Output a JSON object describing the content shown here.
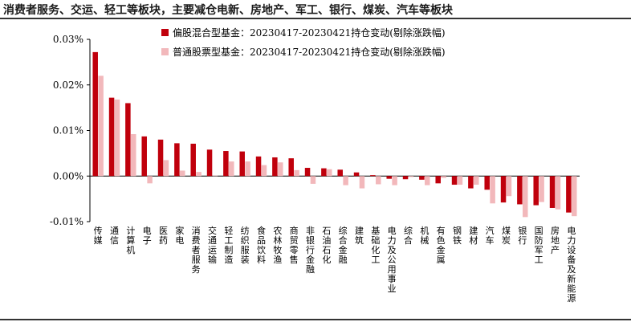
{
  "header": {
    "title": "消费者服务、交运、轻工等板块，主要减仓电新、房地产、军工、银行、煤炭、汽车等板块"
  },
  "chart_data": {
    "type": "bar",
    "title": "",
    "xlabel": "",
    "ylabel": "",
    "ylim": [
      -0.01,
      0.03
    ],
    "yticks": [
      "-0.01%",
      "0.00%",
      "0.01%",
      "0.02%",
      "0.03%"
    ],
    "grid": false,
    "legend_position": "top-center",
    "colors": {
      "series1": "#c0000c",
      "series2": "#f2b8bb"
    },
    "categories": [
      "传媒",
      "通信",
      "计算机",
      "电子",
      "医药",
      "家电",
      "消费者服务",
      "交通运输",
      "轻工制造",
      "纺织服装",
      "食品饮料",
      "农林牧渔",
      "商贸零售",
      "非银行金融",
      "石油石化",
      "综合金融",
      "建筑",
      "基础化工",
      "电力及公用事业",
      "综合",
      "机械",
      "有色金属",
      "钢铁",
      "建材",
      "汽车",
      "煤炭",
      "银行",
      "国防军工",
      "房地产",
      "电力设备及新能源"
    ],
    "series": [
      {
        "name": "偏股混合型基金：20230417-20230421持仓变动(剔除涨跌幅)",
        "values": [
          0.0272,
          0.0172,
          0.016,
          0.0087,
          0.008,
          0.0072,
          0.0071,
          0.0058,
          0.0055,
          0.0054,
          0.0043,
          0.0041,
          0.0039,
          0.0018,
          0.0017,
          0.0014,
          0.0008,
          0.0002,
          -0.0006,
          -0.0007,
          -0.0008,
          -0.0016,
          -0.0019,
          -0.0027,
          -0.003,
          -0.0058,
          -0.0062,
          -0.0064,
          -0.007,
          -0.008
        ]
      },
      {
        "name": "普通股票型基金：20230417-20230421持仓变动(剔除涨跌幅)",
        "values": [
          0.022,
          0.0168,
          0.0092,
          -0.0016,
          0.0035,
          0.0012,
          0.0009,
          0.0001,
          0.0032,
          0.0032,
          0.0024,
          0.003,
          0.0013,
          -0.0017,
          0.0015,
          -0.002,
          -0.0027,
          -0.0018,
          -0.002,
          -0.0002,
          -0.002,
          -0.0004,
          -0.0019,
          -0.0019,
          -0.006,
          -0.0044,
          -0.009,
          -0.0057,
          -0.0073,
          -0.0088
        ]
      }
    ]
  }
}
